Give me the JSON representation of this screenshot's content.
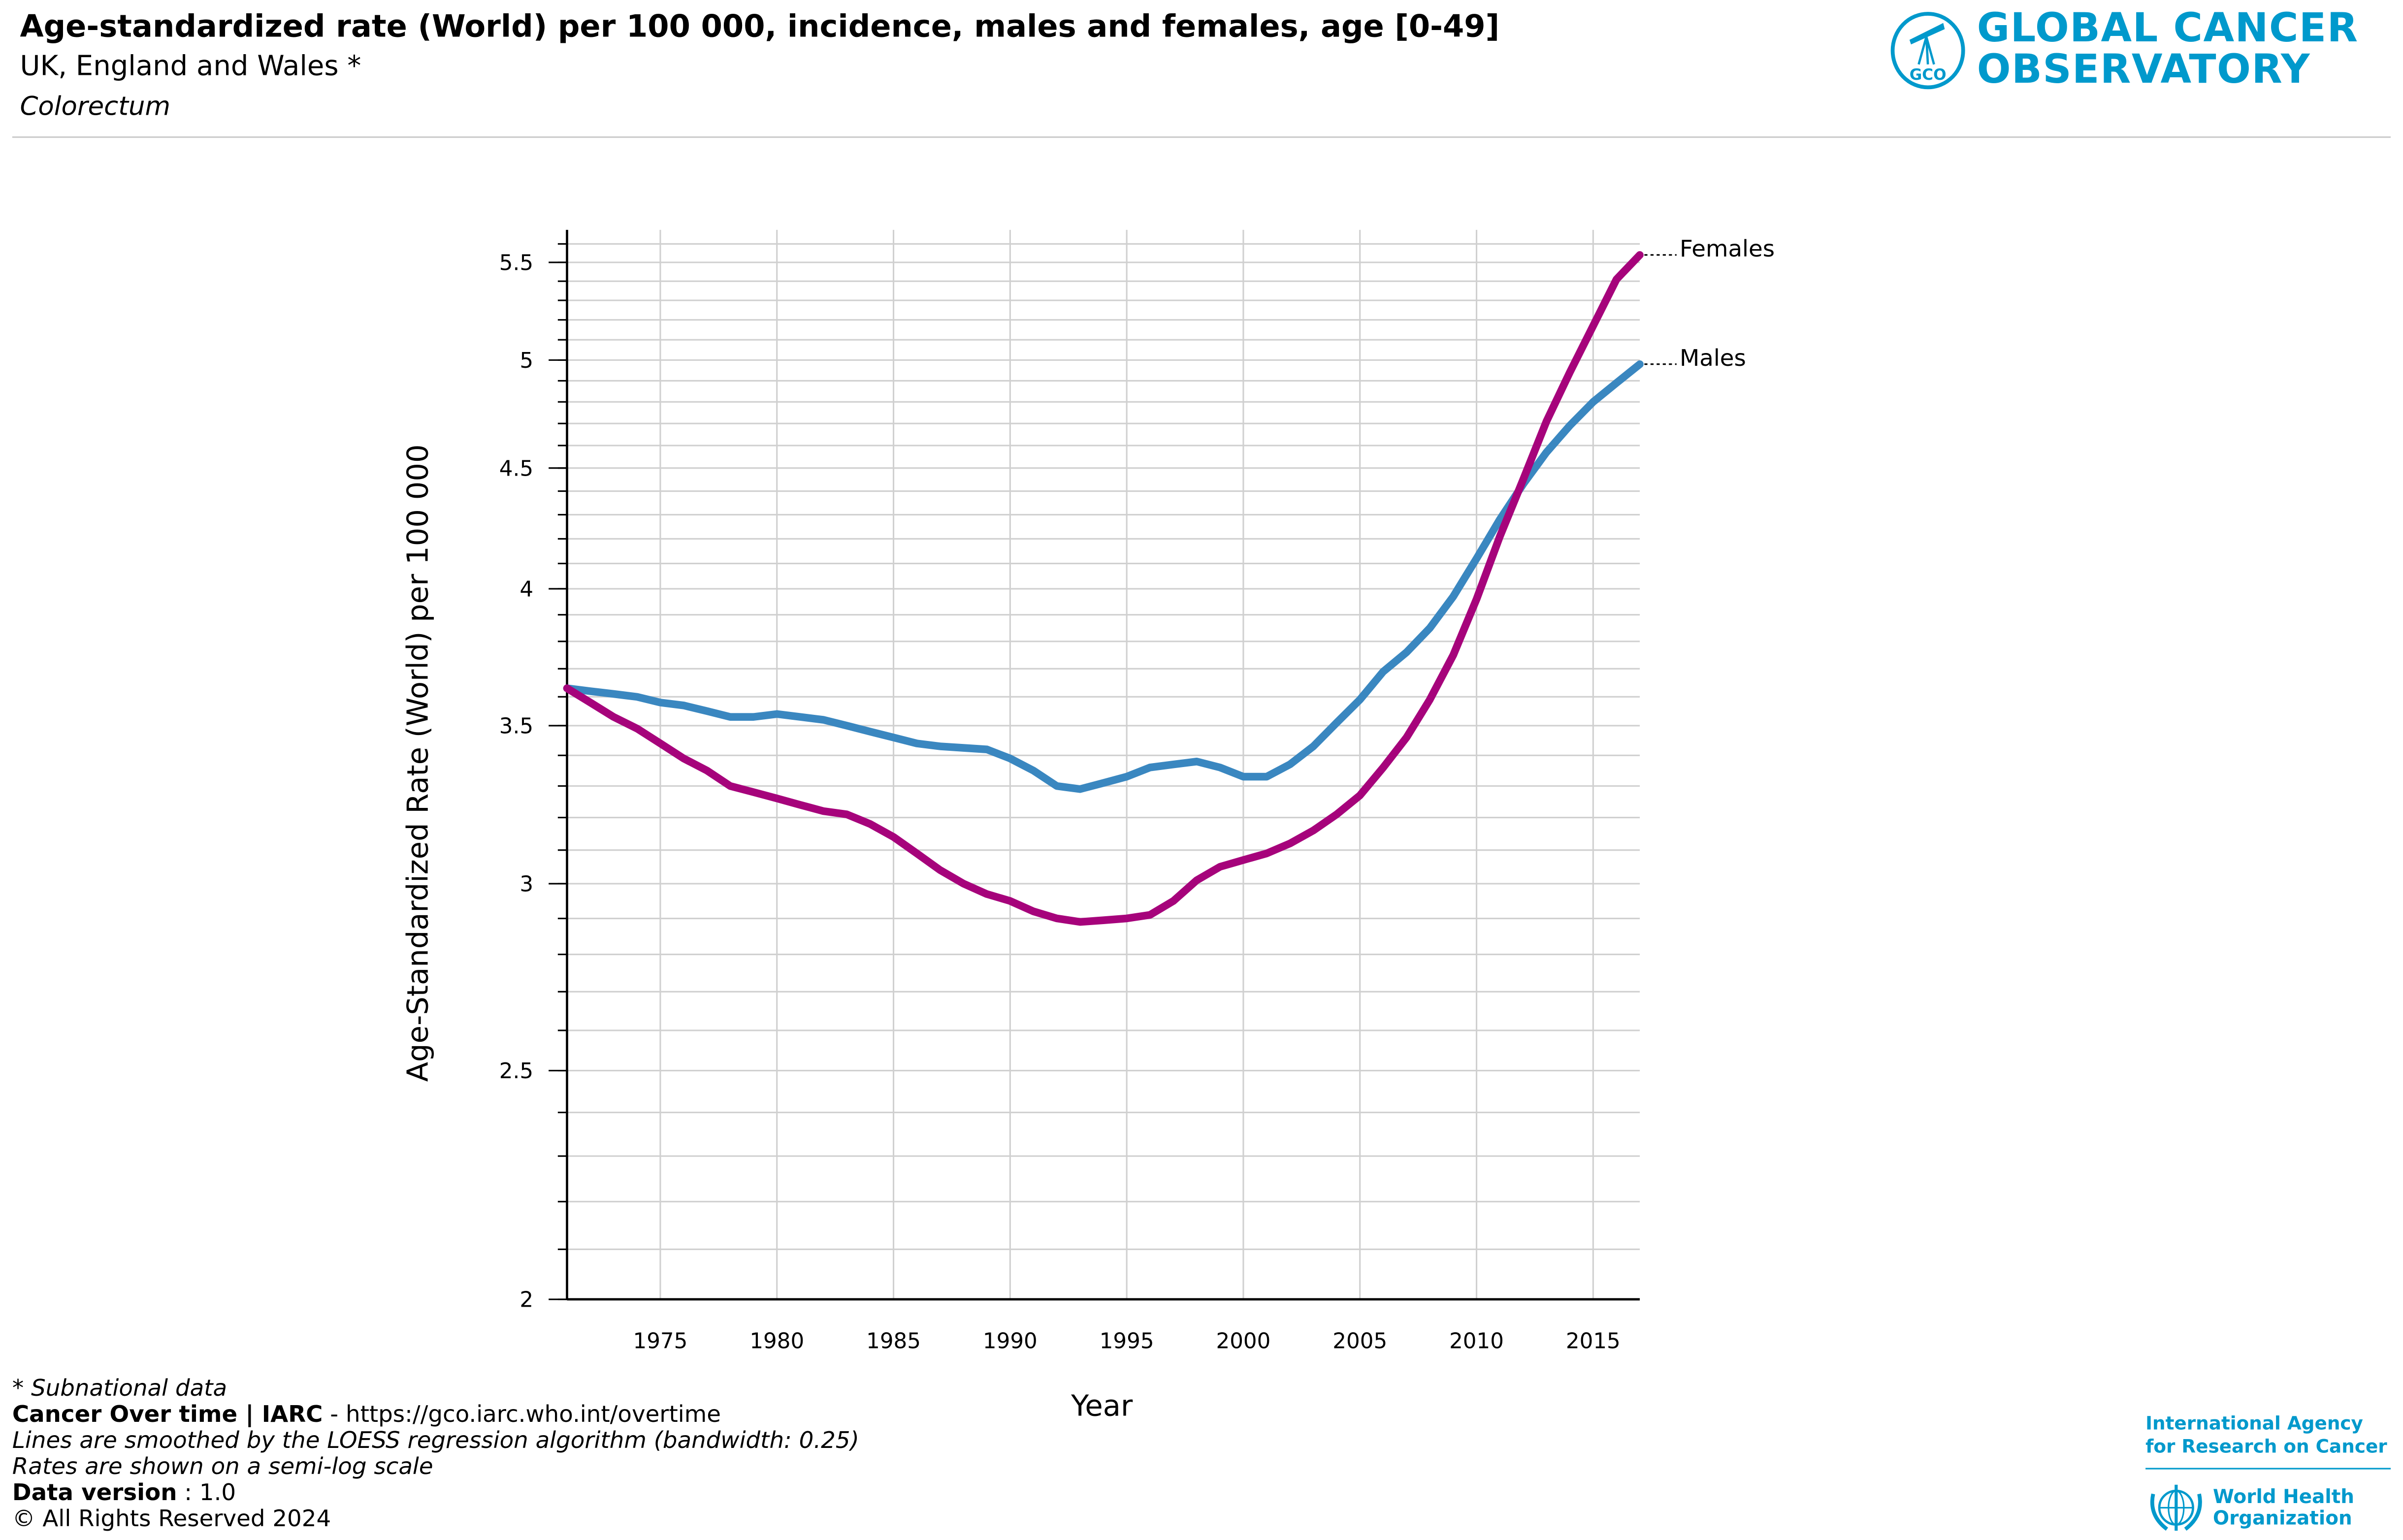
{
  "header": {
    "title": "Age-standardized rate (World) per 100 000, incidence, males and females, age [0-49]",
    "population": "UK, England and Wales *",
    "cancer_site": "Colorectum"
  },
  "logos": {
    "gco": "GLOBAL CANCER OBSERVATORY",
    "gco_line1": "GLOBAL CANCER",
    "gco_line2": "OBSERVATORY",
    "gco_badge": "GCO",
    "iarc_line1": "International Agency",
    "iarc_line2": "for Research on Cancer",
    "who_line1": "World Health",
    "who_line2": "Organization"
  },
  "footer": {
    "subnational_note": "* Subnational data",
    "smoothing_note": "Lines are smoothed by the LOESS regression algorithm (bandwidth: 0.25)",
    "scale_note": "Rates are shown on a semi-log scale",
    "source_label": "Cancer Over time | IARC",
    "source_url": " - https://gco.iarc.who.int/overtime",
    "data_version_label": "Data version",
    "data_version_value": " : 1.0",
    "copyright": "© All Rights Reserved 2024"
  },
  "colors": {
    "males": "#3a87c0",
    "females": "#a6037b",
    "grid": "#d0d0d0"
  },
  "chart_data": {
    "type": "line",
    "title": "Age-standardized rate (World) per 100 000, incidence, males and females, age [0-49]",
    "xlabel": "Year",
    "ylabel": "Age-Standardized Rate (World) per 100 000",
    "xlim": [
      1971,
      2017
    ],
    "ylim": [
      2,
      5.7
    ],
    "yscale": "log",
    "xticks": [
      1975,
      1980,
      1985,
      1990,
      1995,
      2000,
      2005,
      2010,
      2015
    ],
    "yticks": [
      2,
      2.5,
      3,
      3.5,
      4,
      4.5,
      5,
      5.5
    ],
    "ytick_labels": [
      "2",
      "2.5",
      "3",
      "3.5",
      "4",
      "4.5",
      "5",
      "5.5"
    ],
    "grid": true,
    "legend": "line-end labels right",
    "x": [
      1971,
      1972,
      1973,
      1974,
      1975,
      1976,
      1977,
      1978,
      1979,
      1980,
      1981,
      1982,
      1983,
      1984,
      1985,
      1986,
      1987,
      1988,
      1989,
      1990,
      1991,
      1992,
      1993,
      1994,
      1995,
      1996,
      1997,
      1998,
      1999,
      2000,
      2001,
      2002,
      2003,
      2004,
      2005,
      2006,
      2007,
      2008,
      2009,
      2010,
      2011,
      2012,
      2013,
      2014,
      2015,
      2016,
      2017
    ],
    "series": [
      {
        "name": "Males",
        "values": [
          3.63,
          3.62,
          3.61,
          3.6,
          3.58,
          3.57,
          3.55,
          3.53,
          3.53,
          3.54,
          3.53,
          3.52,
          3.5,
          3.48,
          3.46,
          3.44,
          3.43,
          3.425,
          3.42,
          3.39,
          3.35,
          3.3,
          3.29,
          3.31,
          3.33,
          3.36,
          3.37,
          3.38,
          3.36,
          3.33,
          3.33,
          3.37,
          3.43,
          3.51,
          3.59,
          3.69,
          3.76,
          3.85,
          3.97,
          4.12,
          4.28,
          4.43,
          4.57,
          4.69,
          4.8,
          4.89,
          4.98
        ]
      },
      {
        "name": "Females",
        "values": [
          3.63,
          3.58,
          3.53,
          3.49,
          3.44,
          3.39,
          3.35,
          3.3,
          3.28,
          3.26,
          3.24,
          3.22,
          3.21,
          3.18,
          3.14,
          3.09,
          3.04,
          3.0,
          2.97,
          2.95,
          2.92,
          2.9,
          2.89,
          2.895,
          2.9,
          2.91,
          2.95,
          3.01,
          3.05,
          3.07,
          3.09,
          3.12,
          3.16,
          3.21,
          3.27,
          3.36,
          3.46,
          3.59,
          3.75,
          3.96,
          4.21,
          4.45,
          4.71,
          4.94,
          5.17,
          5.41,
          5.54
        ]
      }
    ]
  }
}
